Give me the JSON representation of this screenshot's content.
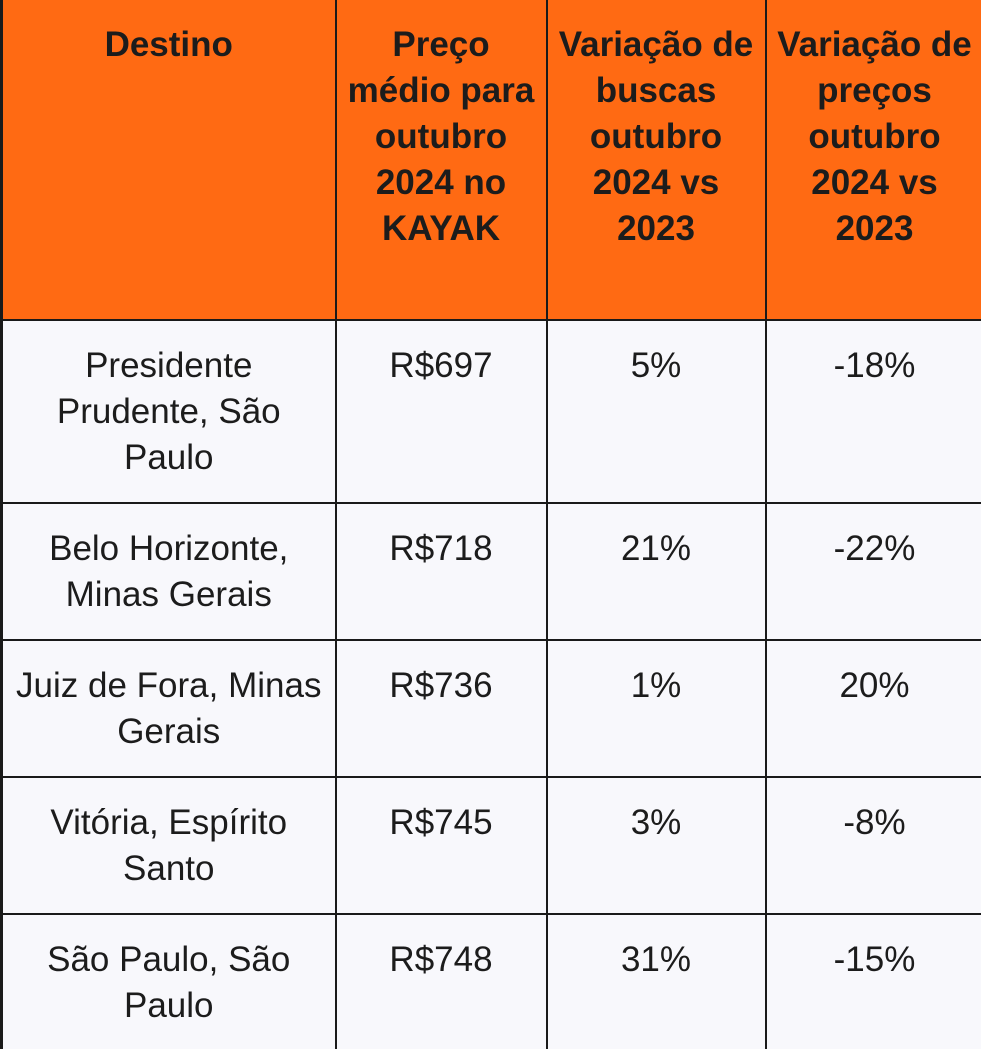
{
  "headers": [
    "Destino",
    "Preço médio para outubro 2024 no KAYAK",
    "Variação de buscas outubro 2024 vs 2023",
    "Variação de preços outubro 2024 vs 2023"
  ],
  "rows": [
    {
      "destino": "Presidente Prudente, São Paulo",
      "preco": "R$697",
      "buscas": "5%",
      "precos": "-18%"
    },
    {
      "destino": "Belo Horizonte, Minas Gerais",
      "preco": "R$718",
      "buscas": "21%",
      "precos": "-22%"
    },
    {
      "destino": "Juiz de Fora, Minas Gerais",
      "preco": "R$736",
      "buscas": "1%",
      "precos": "20%"
    },
    {
      "destino": "Vitória, Espírito Santo",
      "preco": "R$745",
      "buscas": "3%",
      "precos": "-8%"
    },
    {
      "destino": "São Paulo, São Paulo",
      "preco": "R$748",
      "buscas": "31%",
      "precos": "-15%"
    }
  ],
  "colors": {
    "header_bg": "#ff6a13",
    "cell_bg": "#f8f8fc",
    "border": "#1a1a1a",
    "text": "#1c1c1c"
  }
}
